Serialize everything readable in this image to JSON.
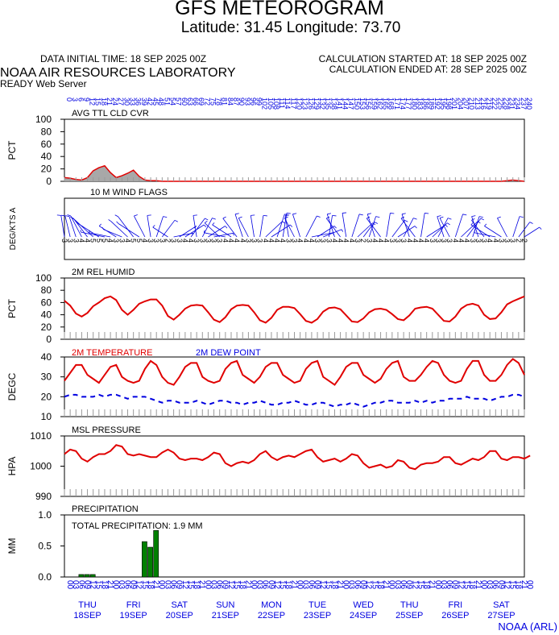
{
  "header": {
    "title": "GFS METEOROGRAM",
    "subtitle": "Latitude: 31.45 Longitude:  73.70",
    "data_initial_time": "DATA INITIAL TIME: 18 SEP 2025 00Z",
    "calc_started": "CALCULATION STARTED AT: 18 SEP 2025 00Z",
    "calc_ended": "CALCULATION ENDED AT: 28 SEP 2025 00Z",
    "organization": "NOAA AIR RESOURCES LABORATORY",
    "server": "READY Web Server"
  },
  "footer": {
    "credit": "NOAA (ARL)"
  },
  "colors": {
    "red": "#e00000",
    "blue": "#0000e0",
    "green": "#008000",
    "cloud_fill": "#a8a8a8"
  },
  "chart_data": [
    {
      "type": "area",
      "title": "AVG TTL CLD CVR",
      "ylabel": "PCT",
      "ylim": [
        0,
        100
      ],
      "yticks": [
        "100",
        "80",
        "60",
        "40",
        "20",
        "0"
      ],
      "x_hours_step": 6,
      "top_axis_labels": [
        "0",
        "3",
        "6",
        "9",
        "12",
        "15",
        "18",
        "21",
        "24",
        "27",
        "30",
        "33",
        "36",
        "39",
        "42",
        "45",
        "48",
        "51",
        "54",
        "57",
        "60",
        "63",
        "66",
        "69",
        "72",
        "75",
        "78",
        "81",
        "84",
        "87",
        "90",
        "93",
        "96",
        "99",
        "102",
        "105",
        "108",
        "111",
        "114",
        "117",
        "120",
        "123",
        "126",
        "129",
        "132",
        "135",
        "138",
        "141",
        "144",
        "147",
        "150",
        "153",
        "156",
        "159",
        "162",
        "165",
        "168",
        "171",
        "174",
        "177",
        "180",
        "183",
        "186",
        "189",
        "192",
        "195",
        "198",
        "201",
        "204",
        "207",
        "210",
        "213",
        "216",
        "219",
        "222",
        "225",
        "228",
        "231",
        "234",
        "237",
        "240"
      ],
      "values": [
        6,
        5,
        3,
        2,
        6,
        17,
        22,
        25,
        14,
        6,
        9,
        13,
        18,
        8,
        2,
        1,
        1,
        0,
        0,
        0,
        0,
        0,
        0,
        0,
        0,
        0,
        0,
        0,
        0,
        0,
        0,
        0,
        0,
        0,
        0,
        0,
        0,
        0,
        0,
        0,
        0,
        0,
        0,
        0,
        0,
        0,
        0,
        0,
        0,
        0,
        0,
        0,
        0,
        0,
        0,
        0,
        0,
        0,
        0,
        0,
        0,
        0,
        0,
        0,
        0,
        0,
        0,
        0,
        0,
        0,
        0,
        0,
        0,
        0,
        0,
        0,
        0,
        1,
        2,
        1,
        0
      ]
    },
    {
      "type": "scatter",
      "title": "10 M  WIND FLAGS",
      "ylabel": "DEG/KTS  A",
      "speed_labels": [
        "3",
        "3",
        "3",
        "4",
        "4",
        "5",
        "5",
        "5",
        "4",
        "3",
        "3",
        "4",
        "5",
        "5",
        "4",
        "3",
        "3",
        "3",
        "2",
        "3",
        "3",
        "4",
        "4",
        "3",
        "3",
        "3",
        "3",
        "3",
        "4",
        "4",
        "4",
        "4",
        "3",
        "3",
        "3",
        "4",
        "4",
        "4",
        "4",
        "3",
        "3",
        "4",
        "4",
        "4",
        "3",
        "3",
        "3",
        "4",
        "4",
        "4",
        "4",
        "3",
        "2",
        "3",
        "4",
        "4",
        "4",
        "3",
        "3",
        "3",
        "4",
        "4",
        "4",
        "4",
        "3",
        "3",
        "3",
        "3",
        "4",
        "4",
        "4",
        "3",
        "3",
        "3",
        "4",
        "4",
        "3",
        "3",
        "3",
        "2",
        "2"
      ],
      "directions_deg": [
        190,
        195,
        200,
        210,
        220,
        230,
        240,
        260,
        280,
        300,
        250,
        230,
        220,
        240,
        330,
        350,
        20,
        40,
        300,
        100,
        120,
        60,
        40,
        350,
        30,
        60,
        80,
        310,
        280,
        300,
        320,
        340,
        330,
        350,
        10,
        50,
        60,
        20,
        10,
        350,
        330,
        340,
        30,
        80,
        60,
        70,
        10,
        340,
        320,
        350,
        20,
        50,
        40,
        20,
        340,
        320,
        10,
        40,
        60,
        30,
        340,
        320,
        10,
        60,
        50,
        30,
        340,
        330,
        20,
        50,
        40,
        20,
        340,
        320,
        300,
        280,
        300,
        330,
        20,
        40,
        60
      ]
    },
    {
      "type": "line",
      "title": "2M REL HUMID",
      "ylabel": "PCT",
      "ylim": [
        0,
        100
      ],
      "yticks": [
        "100",
        "80",
        "60",
        "40",
        "20",
        "0"
      ],
      "x_hours_step": 6,
      "values": [
        63,
        55,
        42,
        37,
        43,
        54,
        60,
        67,
        70,
        64,
        48,
        40,
        48,
        58,
        62,
        65,
        65,
        55,
        38,
        32,
        40,
        50,
        55,
        56,
        55,
        44,
        32,
        28,
        36,
        49,
        55,
        56,
        55,
        44,
        31,
        27,
        35,
        48,
        53,
        53,
        51,
        41,
        30,
        27,
        33,
        45,
        51,
        52,
        49,
        39,
        29,
        28,
        34,
        44,
        49,
        50,
        48,
        41,
        33,
        31,
        39,
        50,
        52,
        53,
        50,
        40,
        30,
        29,
        37,
        50,
        56,
        58,
        55,
        40,
        33,
        34,
        44,
        57,
        62,
        66,
        70
      ]
    },
    {
      "type": "line",
      "title": "",
      "ylabel": "DEGC",
      "ylim": [
        10,
        40
      ],
      "yticks": [
        "40",
        "30",
        "20",
        "10"
      ],
      "x_hours_step": 6,
      "series": [
        {
          "name": "2M TEMPERATURE",
          "color": "#e00000",
          "dashed": false,
          "values": [
            28,
            32,
            36,
            36,
            31,
            29,
            27,
            31,
            35,
            36,
            30,
            28,
            27,
            28,
            34,
            38,
            36,
            30,
            27,
            26,
            30,
            35,
            37,
            37,
            30,
            28,
            27,
            28,
            34,
            37,
            38,
            31,
            29,
            27,
            30,
            35,
            37,
            37,
            31,
            29,
            27,
            28,
            34,
            37,
            38,
            30,
            28,
            26,
            30,
            35,
            37,
            37,
            31,
            29,
            27,
            29,
            34,
            37,
            38,
            30,
            28,
            28,
            31,
            35,
            38,
            37,
            31,
            28,
            27,
            28,
            34,
            38,
            38,
            31,
            28,
            28,
            31,
            36,
            39,
            37,
            31
          ]
        },
        {
          "name": "2M   DEW POINT",
          "color": "#0000e0",
          "dashed": true,
          "values": [
            20,
            21,
            21,
            20,
            20,
            20,
            21,
            20,
            21,
            21,
            20,
            19,
            20,
            20,
            20,
            19,
            18,
            17,
            18,
            18,
            17,
            17,
            17,
            18,
            17,
            16,
            17,
            18,
            18,
            17,
            17,
            16,
            17,
            17,
            18,
            17,
            16,
            16,
            17,
            17,
            18,
            17,
            16,
            16,
            17,
            17,
            16,
            15,
            16,
            16,
            17,
            16,
            15,
            16,
            17,
            17,
            18,
            18,
            17,
            17,
            17,
            18,
            17,
            18,
            17,
            18,
            18,
            19,
            19,
            19,
            20,
            19,
            19,
            19,
            18,
            19,
            20,
            20,
            21,
            21,
            20
          ]
        }
      ]
    },
    {
      "type": "line",
      "title": "MSL PRESSURE",
      "ylabel": "HPA",
      "ylim": [
        990,
        1010
      ],
      "yticks": [
        "1010",
        "1000",
        "990"
      ],
      "x_hours_step": 6,
      "values": [
        1004,
        1005.5,
        1005,
        1002.5,
        1001.5,
        1003,
        1004,
        1004,
        1005,
        1007,
        1006.5,
        1004,
        1003.5,
        1004,
        1003.5,
        1003,
        1003,
        1004.5,
        1005.5,
        1004.5,
        1002.5,
        1002,
        1002.5,
        1002.5,
        1002,
        1003,
        1004.5,
        1004,
        1001,
        1000,
        1001,
        1001.5,
        1001,
        1002,
        1004,
        1005,
        1003,
        1002,
        1003,
        1003.5,
        1003,
        1004,
        1005,
        1005.5,
        1003,
        1001.5,
        1002,
        1002.5,
        1001.5,
        1002.5,
        1004,
        1003.5,
        1001,
        999.5,
        1000,
        1000.5,
        999.5,
        1000,
        1002,
        1001.5,
        999.5,
        999,
        1000.5,
        1001,
        1001,
        1001.5,
        1003,
        1003,
        1001,
        1000.5,
        1001.5,
        1002.5,
        1002,
        1003,
        1005,
        1005,
        1002.5,
        1002,
        1003,
        1003,
        1002.5,
        1003.5
      ]
    },
    {
      "type": "bar",
      "title": "PRECIPITATION",
      "ylabel": "MM",
      "ylim": [
        0,
        1.0
      ],
      "yticks": [
        "1.0",
        "0.5",
        "0.0"
      ],
      "annotation": "TOTAL PRECIPITATION:   1.9 MM",
      "x_hours_step": 3,
      "values": [
        0,
        0,
        0,
        0.04,
        0.04,
        0.04,
        0,
        0,
        0,
        0,
        0,
        0,
        0,
        0,
        0.57,
        0.48,
        0.75,
        0,
        0,
        0,
        0,
        0,
        0,
        0,
        0,
        0,
        0,
        0,
        0,
        0,
        0,
        0,
        0,
        0,
        0,
        0,
        0,
        0,
        0,
        0,
        0,
        0,
        0,
        0,
        0,
        0,
        0,
        0,
        0,
        0,
        0,
        0,
        0,
        0,
        0,
        0,
        0,
        0,
        0,
        0,
        0,
        0,
        0,
        0,
        0,
        0,
        0,
        0,
        0,
        0,
        0,
        0,
        0,
        0,
        0,
        0,
        0,
        0,
        0,
        0,
        0
      ]
    }
  ],
  "x_axis": {
    "hour_labels": [
      "00",
      "03",
      "06",
      "09",
      "12",
      "15",
      "18",
      "21",
      "00",
      "03",
      "06",
      "09",
      "12",
      "15",
      "18",
      "21",
      "00",
      "03",
      "06",
      "09",
      "12",
      "15",
      "18",
      "21",
      "00",
      "03",
      "06",
      "09",
      "12",
      "15",
      "18",
      "21",
      "00",
      "03",
      "06",
      "09",
      "12",
      "15",
      "18",
      "21",
      "00",
      "03",
      "06",
      "09",
      "12",
      "15",
      "18",
      "21",
      "00",
      "03",
      "06",
      "09",
      "12",
      "15",
      "18",
      "21",
      "00",
      "03",
      "06",
      "09",
      "12",
      "15",
      "18",
      "21",
      "00",
      "03",
      "06",
      "09",
      "12",
      "15",
      "18",
      "21",
      "00",
      "03",
      "06",
      "09",
      "12",
      "15",
      "18",
      "21",
      "00"
    ],
    "days": [
      {
        "dow": "THU",
        "date": "18SEP"
      },
      {
        "dow": "FRI",
        "date": "19SEP"
      },
      {
        "dow": "SAT",
        "date": "20SEP"
      },
      {
        "dow": "SUN",
        "date": "21SEP"
      },
      {
        "dow": "MON",
        "date": "22SEP"
      },
      {
        "dow": "TUE",
        "date": "23SEP"
      },
      {
        "dow": "WED",
        "date": "24SEP"
      },
      {
        "dow": "THU",
        "date": "25SEP"
      },
      {
        "dow": "FRI",
        "date": "26SEP"
      },
      {
        "dow": "SAT",
        "date": "27SEP"
      }
    ]
  }
}
